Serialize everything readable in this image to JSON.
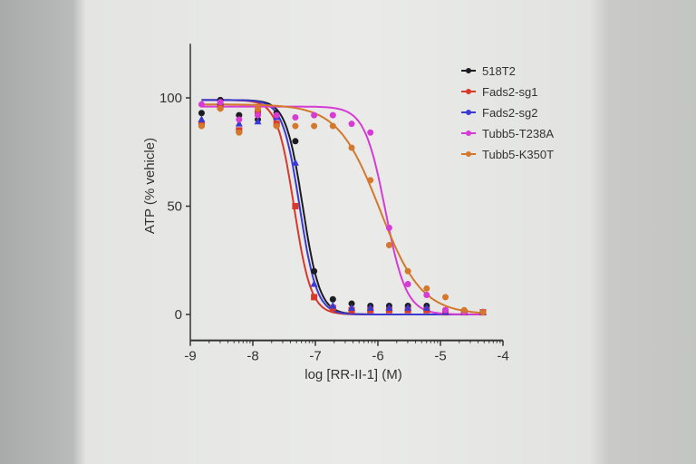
{
  "chart_data": {
    "type": "scatter",
    "title": "",
    "xlabel": "log [RR-II-1] (M)",
    "ylabel": "ATP (% vehicle)",
    "xlim": [
      -9,
      -4
    ],
    "ylim": [
      -12,
      125
    ],
    "xticks": [
      "-9",
      "-8",
      "-7",
      "-6",
      "-5",
      "-4"
    ],
    "yticks": [
      "0",
      "50",
      "100"
    ],
    "legend_position": "top-right",
    "grid": false,
    "x": [
      -8.82,
      -8.52,
      -8.22,
      -7.92,
      -7.62,
      -7.32,
      -7.02,
      -6.72,
      -6.42,
      -6.12,
      -5.82,
      -5.52,
      -5.22,
      -4.92,
      -4.62,
      -4.32
    ],
    "series": [
      {
        "name": "518T2",
        "color": "#1c1c22",
        "marker": "circle",
        "values": [
          93,
          99,
          92,
          90,
          93,
          80,
          20,
          7,
          5,
          4,
          4,
          4,
          4,
          2,
          1,
          1
        ],
        "fit": {
          "top": 99,
          "bottom": 0,
          "logIC50": -7.2,
          "hill": 3.2
        }
      },
      {
        "name": "Fads2-sg1",
        "color": "#d8392b",
        "marker": "square",
        "values": [
          88,
          96,
          85,
          93,
          88,
          50,
          8,
          3,
          2,
          2,
          2,
          2,
          2,
          1,
          1,
          1
        ],
        "fit": {
          "top": 99,
          "bottom": 0,
          "logIC50": -7.34,
          "hill": 3.2
        }
      },
      {
        "name": "Fads2-sg2",
        "color": "#3a3ad2",
        "marker": "triangle",
        "values": [
          90,
          98,
          88,
          89,
          91,
          70,
          14,
          4,
          3,
          3,
          3,
          3,
          3,
          1,
          1,
          1
        ],
        "fit": {
          "top": 99,
          "bottom": 0,
          "logIC50": -7.25,
          "hill": 3.2
        }
      },
      {
        "name": "Tubb5-T238A",
        "color": "#d63bd3",
        "marker": "circle",
        "values": [
          97,
          98,
          90,
          92,
          92,
          91,
          92,
          92,
          88,
          84,
          40,
          14,
          9,
          2,
          1,
          1
        ],
        "fit": {
          "top": 96,
          "bottom": 0,
          "logIC50": -5.88,
          "hill": 2.6
        }
      },
      {
        "name": "Tubb5-K350T",
        "color": "#d3782c",
        "marker": "circle",
        "values": [
          87,
          95,
          84,
          95,
          87,
          87,
          87,
          87,
          77,
          62,
          32,
          20,
          12,
          8,
          2,
          1
        ],
        "fit": {
          "top": 97,
          "bottom": 0,
          "logIC50": -5.97,
          "hill": 1.3
        }
      }
    ]
  }
}
